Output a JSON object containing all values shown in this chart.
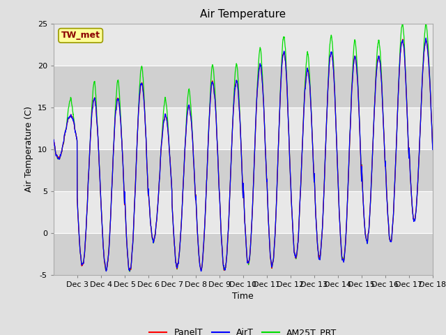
{
  "title": "Air Temperature",
  "ylabel": "Air Temperature (C)",
  "xlabel": "Time",
  "annotation_text": "TW_met",
  "annotation_color": "#8B0000",
  "annotation_bg": "#FFFF99",
  "ylim": [
    -5,
    25
  ],
  "yticks": [
    -5,
    0,
    5,
    10,
    15,
    20,
    25
  ],
  "xtick_labels": [
    "Dec 3",
    "Dec 4",
    "Dec 5",
    "Dec 6",
    "Dec 7",
    "Dec 8",
    "Dec 9",
    "Dec 10",
    "Dec 11",
    "Dec 12",
    "Dec 13",
    "Dec 14",
    "Dec 15",
    "Dec 16",
    "Dec 17",
    "Dec 18"
  ],
  "series_PanelT_color": "#FF0000",
  "series_AirT_color": "#0000FF",
  "series_AM25T_PRT_color": "#00DD00",
  "bg_color": "#E0E0E0",
  "band_dark": "#D0D0D0",
  "band_light": "#E8E8E8",
  "title_fontsize": 11,
  "label_fontsize": 9,
  "tick_fontsize": 8,
  "legend_fontsize": 9
}
